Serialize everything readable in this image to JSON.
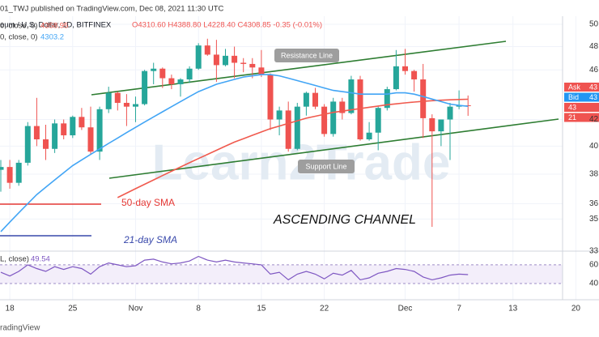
{
  "header": {
    "published": "01_TWJ published on TradingView.com, Dec 08, 2021 11:30 UTC",
    "symbol": "eum / U.S. Dollar, 1D, BITFINEX",
    "ohlc": "O4310.60 H4388.80 L4228.40 C4308.85 -0.35 (-0.01%)",
    "footer": "radingView",
    "watermark": "Learn2Trade",
    "price_tags": [
      {
        "label": "Ask",
        "price": "43"
      },
      {
        "label": "Bid",
        "price": "43"
      },
      {
        "label": "43"
      },
      {
        "label": "21"
      }
    ]
  },
  "annotations": {
    "resistance": "Resistance Line",
    "support": "Support Line",
    "sma50": "50-day SMA",
    "sma21": "21-day SMA",
    "channel": "ASCENDING CHANNEL"
  },
  "chart_data": {
    "type": "candlestick",
    "log_scale": true,
    "grid": true,
    "up_color": "#26a69a",
    "down_color": "#ef5350",
    "categories": [
      null,
      "18",
      null,
      null,
      null,
      null,
      null,
      null,
      "25",
      null,
      null,
      null,
      null,
      null,
      null,
      "Nov",
      null,
      null,
      null,
      null,
      null,
      null,
      "8",
      null,
      null,
      null,
      null,
      null,
      null,
      "15",
      null,
      null,
      null,
      null,
      null,
      null,
      "22",
      null,
      null,
      null,
      null,
      null,
      null,
      null,
      null,
      "Dec",
      null,
      null,
      null,
      null,
      null,
      "7",
      null,
      null,
      null,
      null,
      null,
      "13",
      null,
      null,
      null,
      null,
      null,
      null,
      "20",
      null,
      null
    ],
    "open": [
      3830,
      3850,
      3740,
      3880,
      4150,
      4050,
      3980,
      4170,
      4080,
      4220,
      4140,
      3960,
      4280,
      4410,
      4330,
      4300,
      4320,
      4590,
      4610,
      4530,
      4480,
      4520,
      4610,
      4810,
      4730,
      4640,
      4720,
      4660,
      4650,
      4620,
      4560,
      4200,
      4270,
      3980,
      4300,
      4410,
      4300,
      4090,
      4340,
      4250,
      4520,
      4050,
      4100,
      4290,
      4440,
      4630,
      4590,
      4520,
      4210,
      4110,
      4200,
      4300,
      4310.6,
      null,
      null,
      null,
      null,
      null,
      null,
      null,
      null,
      null,
      null,
      null,
      null,
      null,
      null
    ],
    "high": [
      3900,
      3900,
      3900,
      4180,
      4370,
      4160,
      4200,
      4200,
      4230,
      4290,
      4300,
      4300,
      4460,
      4420,
      4400,
      4380,
      4600,
      4660,
      4620,
      4560,
      4530,
      4630,
      4830,
      4870,
      4860,
      4780,
      4800,
      4700,
      4700,
      4770,
      4570,
      4300,
      4340,
      4330,
      4420,
      4450,
      4320,
      4370,
      4370,
      4550,
      4550,
      4180,
      4300,
      4460,
      4770,
      4780,
      4600,
      4650,
      4240,
      4200,
      4330,
      4430,
      4388.8,
      null,
      null,
      null,
      null,
      null,
      null,
      null,
      null,
      null,
      null,
      null,
      null,
      null,
      null
    ],
    "low": [
      3680,
      3700,
      3720,
      3860,
      4000,
      3900,
      3950,
      4050,
      4060,
      4120,
      3940,
      3900,
      4250,
      4270,
      4150,
      4180,
      4310,
      4480,
      4450,
      4440,
      4380,
      4490,
      4600,
      4720,
      4500,
      4630,
      4530,
      4580,
      4530,
      4540,
      4120,
      4080,
      3960,
      3970,
      4230,
      4280,
      4070,
      4070,
      4200,
      4240,
      4040,
      4040,
      3970,
      4270,
      4430,
      4560,
      4420,
      4060,
      3450,
      4000,
      3900,
      4280,
      4228.4,
      null,
      null,
      null,
      null,
      null,
      null,
      null,
      null,
      null,
      null,
      null,
      null,
      null,
      null
    ],
    "close": [
      3850,
      3740,
      3880,
      4150,
      4050,
      3980,
      4170,
      4080,
      4220,
      4140,
      3960,
      4280,
      4410,
      4330,
      4300,
      4320,
      4590,
      4610,
      4530,
      4480,
      4520,
      4610,
      4810,
      4730,
      4640,
      4720,
      4660,
      4650,
      4620,
      4560,
      4200,
      4270,
      3980,
      4300,
      4410,
      4300,
      4090,
      4340,
      4250,
      4520,
      4050,
      4100,
      4290,
      4440,
      4630,
      4590,
      4520,
      4210,
      4110,
      4200,
      4300,
      4310,
      4308.85,
      null,
      null,
      null,
      null,
      null,
      null,
      null,
      null,
      null,
      null,
      null,
      null,
      null,
      null
    ],
    "series": [
      {
        "name": "0, close, 0)",
        "color": "#f05a4e",
        "values": [
          null,
          null,
          null,
          null,
          null,
          null,
          null,
          null,
          null,
          null,
          null,
          null,
          null,
          3640,
          3670,
          3700,
          3730,
          3760,
          3790,
          3820,
          3850,
          3880,
          3910,
          3940,
          3970,
          4000,
          4030,
          4055,
          4080,
          4105,
          4130,
          4150,
          4170,
          4190,
          4210,
          4225,
          4240,
          4255,
          4265,
          4275,
          4285,
          4295,
          4305,
          4315,
          4322,
          4330,
          4336,
          4342,
          4347,
          4351,
          4354,
          4357,
          4358.95,
          null,
          null,
          null,
          null,
          null,
          null,
          null,
          null,
          null,
          null,
          null,
          null,
          null,
          null
        ]
      },
      {
        "name": "0, close, 0)",
        "color": "#42a5f5",
        "values": [
          3420,
          3480,
          3540,
          3600,
          3660,
          3710,
          3760,
          3810,
          3860,
          3900,
          3940,
          3980,
          4020,
          4060,
          4100,
          4140,
          4180,
          4220,
          4260,
          4300,
          4340,
          4380,
          4420,
          4450,
          4480,
          4500,
          4520,
          4540,
          4550,
          4560,
          4560,
          4550,
          4530,
          4510,
          4490,
          4470,
          4450,
          4430,
          4420,
          4410,
          4400,
          4400,
          4400,
          4400,
          4410,
          4410,
          4400,
          4380,
          4360,
          4340,
          4320,
          4310,
          4303.2,
          null,
          null,
          null,
          null,
          null,
          null,
          null,
          null,
          null,
          null,
          null,
          null,
          null,
          null
        ]
      }
    ],
    "ylim": [
      3300,
      5060
    ],
    "yticks": [
      {
        "value": 5000,
        "label": "50"
      },
      {
        "value": 4800,
        "label": "48"
      },
      {
        "value": 4600,
        "label": "46"
      },
      {
        "value": 4200,
        "label": "42"
      },
      {
        "value": 4000,
        "label": "40"
      },
      {
        "value": 3800,
        "label": "38"
      },
      {
        "value": 3600,
        "label": "36"
      },
      {
        "value": 3500,
        "label": "35"
      },
      {
        "value": 3300,
        "label": "33"
      }
    ],
    "rsi": {
      "name": "L, close)",
      "color": "#7e57c2",
      "ylim": [
        27,
        72
      ],
      "yticks": [
        40,
        60
      ],
      "values": [
        52,
        48,
        53,
        60,
        56,
        53,
        58,
        55,
        58,
        56,
        50,
        58,
        62,
        60,
        58,
        59,
        65,
        66,
        63,
        61,
        62,
        64,
        69,
        65,
        63,
        65,
        63,
        62,
        61,
        60,
        50,
        52,
        44,
        50,
        53,
        50,
        45,
        51,
        49,
        54,
        44,
        46,
        51,
        53,
        56,
        55,
        53,
        47,
        44,
        46,
        49,
        50,
        49.54,
        null,
        null,
        null,
        null,
        null,
        null,
        null,
        null,
        null,
        null,
        null,
        null,
        null,
        null
      ]
    }
  }
}
